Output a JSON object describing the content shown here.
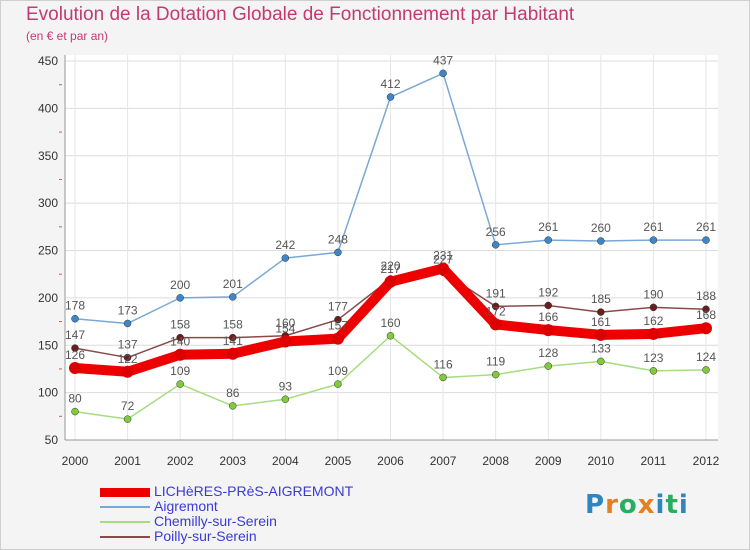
{
  "title": "Evolution de la Dotation Globale de Fonctionnement par Habitant",
  "subtitle": "(en € et par an)",
  "logo": {
    "text": "Proxiti",
    "colors": [
      "#2e86c1",
      "#e67e22",
      "#27ae60",
      "#e67e22",
      "#2e86c1",
      "#27ae60",
      "#2e86c1"
    ]
  },
  "chart_data": {
    "type": "line",
    "title": "Evolution de la Dotation Globale de Fonctionnement par Habitant",
    "subtitle": "(en € et par an)",
    "xlabel": "",
    "ylabel": "",
    "ylim": [
      50,
      450
    ],
    "yticks": [
      50,
      100,
      150,
      200,
      250,
      300,
      350,
      400,
      450
    ],
    "x": [
      "2000",
      "2001",
      "2002",
      "2003",
      "2004",
      "2005",
      "2006",
      "2007",
      "2008",
      "2009",
      "2010",
      "2011",
      "2012"
    ],
    "grid": true,
    "legend_position": "bottom-left",
    "series": [
      {
        "name": "LICHèRES-PRèS-AIGREMONT",
        "color": "#ee0000",
        "dot": "#dd0000",
        "width": 10,
        "values": [
          126,
          122,
          140,
          141,
          154,
          157,
          217,
          231,
          172,
          166,
          161,
          162,
          168
        ]
      },
      {
        "name": "Aigremont",
        "color": "#7aa8d6",
        "dot": "#3d87c9",
        "width": 1.5,
        "values": [
          178,
          173,
          200,
          201,
          242,
          248,
          412,
          437,
          256,
          261,
          260,
          261,
          261
        ]
      },
      {
        "name": "Chemilly-sur-Serein",
        "color": "#a6dd7e",
        "dot": "#7fcb3c",
        "width": 1.5,
        "values": [
          80,
          72,
          109,
          86,
          93,
          109,
          160,
          116,
          119,
          128,
          133,
          123,
          124
        ]
      },
      {
        "name": "Poilly-sur-Serein",
        "color": "#8a4a4a",
        "dot": "#6b1e1e",
        "width": 1.5,
        "values": [
          147,
          137,
          158,
          158,
          160,
          177,
          220,
          227,
          191,
          192,
          185,
          190,
          188
        ]
      }
    ]
  }
}
